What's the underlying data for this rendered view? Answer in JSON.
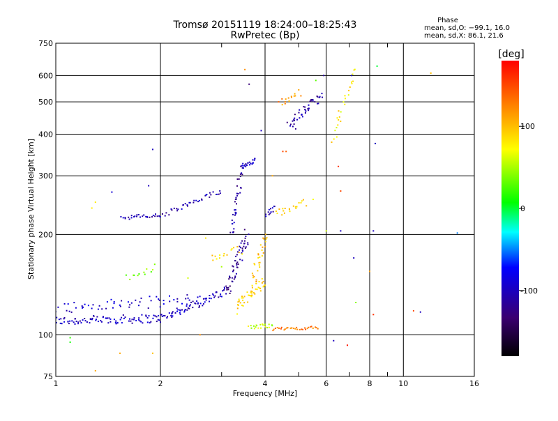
{
  "chart_data": {
    "type": "scatter",
    "title": "Tromsø 20151119 18:24:00–18:25:43",
    "subtitle": "RwPretec (Bp)",
    "xlabel": "Frequency [MHz]",
    "ylabel": "Stationary phase Virtual Height [km]",
    "x_scale": "log",
    "y_scale": "log",
    "xlim": [
      1,
      16
    ],
    "ylim": [
      75,
      750
    ],
    "x_ticks": [
      1,
      2,
      4,
      6,
      8,
      10,
      16
    ],
    "y_ticks": [
      75,
      100,
      200,
      300,
      400,
      500,
      600,
      750
    ],
    "grid": true,
    "phase_box": {
      "title": "Phase",
      "line1": "mean, sd,O: −99.1, 16.0",
      "line2": "mean, sd,X:  86.1, 21.6"
    },
    "colorbar": {
      "label": "[deg]",
      "ticks": [
        100,
        0,
        -100
      ],
      "range": [
        -180,
        180
      ],
      "colors": [
        "#000000",
        "#3a0070",
        "#0000ff",
        "#00ffff",
        "#00ff00",
        "#ffff00",
        "#ff8000",
        "#ff0000"
      ]
    },
    "traces": [
      {
        "f0": 1.0,
        "f1": 2.0,
        "h0": 110,
        "h1": 112,
        "n": 90,
        "phase": -100,
        "jit": 0.03
      },
      {
        "f0": 2.0,
        "f1": 3.1,
        "h0": 112,
        "h1": 135,
        "n": 70,
        "phase": -100,
        "jit": 0.03
      },
      {
        "f0": 3.1,
        "f1": 3.55,
        "h0": 135,
        "h1": 200,
        "n": 60,
        "phase": -120,
        "jit": 0.04
      },
      {
        "f0": 3.2,
        "f1": 3.45,
        "h0": 200,
        "h1": 330,
        "n": 40,
        "phase": -110,
        "jit": 0.03
      },
      {
        "f0": 1.0,
        "f1": 2.6,
        "h0": 120,
        "h1": 128,
        "n": 60,
        "phase": -95,
        "jit": 0.04
      },
      {
        "f0": 1.55,
        "f1": 2.05,
        "h0": 225,
        "h1": 228,
        "n": 30,
        "phase": -105,
        "jit": 0.015
      },
      {
        "f0": 2.1,
        "f1": 3.0,
        "h0": 232,
        "h1": 270,
        "n": 35,
        "phase": -105,
        "jit": 0.02
      },
      {
        "f0": 3.45,
        "f1": 3.75,
        "h0": 320,
        "h1": 335,
        "n": 20,
        "phase": -100,
        "jit": 0.015
      },
      {
        "f0": 4.0,
        "f1": 4.3,
        "h0": 230,
        "h1": 240,
        "n": 12,
        "phase": -100,
        "jit": 0.02
      },
      {
        "f0": 4.7,
        "f1": 5.8,
        "h0": 430,
        "h1": 520,
        "n": 45,
        "phase": -110,
        "jit": 0.03
      },
      {
        "f0": 3.3,
        "f1": 4.0,
        "h0": 120,
        "h1": 145,
        "n": 45,
        "phase": 90,
        "jit": 0.04
      },
      {
        "f0": 3.7,
        "f1": 4.0,
        "h0": 145,
        "h1": 200,
        "n": 30,
        "phase": 100,
        "jit": 0.04
      },
      {
        "f0": 3.6,
        "f1": 4.2,
        "h0": 105,
        "h1": 107,
        "n": 20,
        "phase": 60,
        "jit": 0.015
      },
      {
        "f0": 4.2,
        "f1": 5.7,
        "h0": 104,
        "h1": 105,
        "n": 30,
        "phase": 130,
        "jit": 0.01
      },
      {
        "f0": 2.8,
        "f1": 3.4,
        "h0": 170,
        "h1": 180,
        "n": 15,
        "phase": 90,
        "jit": 0.03
      },
      {
        "f0": 4.3,
        "f1": 5.2,
        "h0": 230,
        "h1": 250,
        "n": 20,
        "phase": 90,
        "jit": 0.03
      },
      {
        "f0": 4.4,
        "f1": 5.0,
        "h0": 500,
        "h1": 530,
        "n": 15,
        "phase": 120,
        "jit": 0.03
      },
      {
        "f0": 6.3,
        "f1": 7.2,
        "h0": 380,
        "h1": 620,
        "n": 25,
        "phase": 80,
        "jit": 0.04
      },
      {
        "f0": 1.6,
        "f1": 1.95,
        "h0": 150,
        "h1": 160,
        "n": 12,
        "phase": 40,
        "jit": 0.03
      }
    ],
    "scatter_points": [
      {
        "x": 1.3,
        "y": 250,
        "p": 80
      },
      {
        "x": 1.27,
        "y": 240,
        "p": 80
      },
      {
        "x": 1.45,
        "y": 268,
        "p": -90
      },
      {
        "x": 1.1,
        "y": 95,
        "p": 10
      },
      {
        "x": 1.1,
        "y": 98,
        "p": 20
      },
      {
        "x": 1.3,
        "y": 78,
        "p": 110
      },
      {
        "x": 1.53,
        "y": 88,
        "p": 110
      },
      {
        "x": 1.9,
        "y": 88,
        "p": 100
      },
      {
        "x": 1.9,
        "y": 360,
        "p": -100
      },
      {
        "x": 1.85,
        "y": 280,
        "p": -100
      },
      {
        "x": 2.6,
        "y": 100,
        "p": 120
      },
      {
        "x": 3.5,
        "y": 625,
        "p": 120
      },
      {
        "x": 3.6,
        "y": 565,
        "p": -130
      },
      {
        "x": 3.9,
        "y": 410,
        "p": -100
      },
      {
        "x": 4.5,
        "y": 355,
        "p": 150
      },
      {
        "x": 4.9,
        "y": 415,
        "p": -120
      },
      {
        "x": 5.5,
        "y": 255,
        "p": 70
      },
      {
        "x": 5.9,
        "y": 600,
        "p": -110
      },
      {
        "x": 6.3,
        "y": 96,
        "p": -100
      },
      {
        "x": 6.5,
        "y": 320,
        "p": 160
      },
      {
        "x": 6.6,
        "y": 270,
        "p": 150
      },
      {
        "x": 6.9,
        "y": 93,
        "p": 170
      },
      {
        "x": 7.1,
        "y": 600,
        "p": -90
      },
      {
        "x": 7.2,
        "y": 170,
        "p": -100
      },
      {
        "x": 7.3,
        "y": 125,
        "p": 40
      },
      {
        "x": 8.2,
        "y": 115,
        "p": 160
      },
      {
        "x": 8.3,
        "y": 375,
        "p": -100
      },
      {
        "x": 8.4,
        "y": 640,
        "p": 0
      },
      {
        "x": 8.2,
        "y": 205,
        "p": -100
      },
      {
        "x": 8.0,
        "y": 155,
        "p": 110
      },
      {
        "x": 10.7,
        "y": 118,
        "p": 150
      },
      {
        "x": 11.2,
        "y": 117,
        "p": -100
      },
      {
        "x": 12.0,
        "y": 610,
        "p": 100
      },
      {
        "x": 14.3,
        "y": 202,
        "p": -50
      },
      {
        "x": 6.6,
        "y": 205,
        "p": -100
      },
      {
        "x": 6.0,
        "y": 205,
        "p": 60
      },
      {
        "x": 5.6,
        "y": 580,
        "p": 30
      },
      {
        "x": 4.6,
        "y": 355,
        "p": 140
      },
      {
        "x": 4.2,
        "y": 300,
        "p": 110
      },
      {
        "x": 3.0,
        "y": 160,
        "p": 50
      },
      {
        "x": 2.4,
        "y": 148,
        "p": 60
      },
      {
        "x": 2.7,
        "y": 195,
        "p": 80
      }
    ]
  }
}
